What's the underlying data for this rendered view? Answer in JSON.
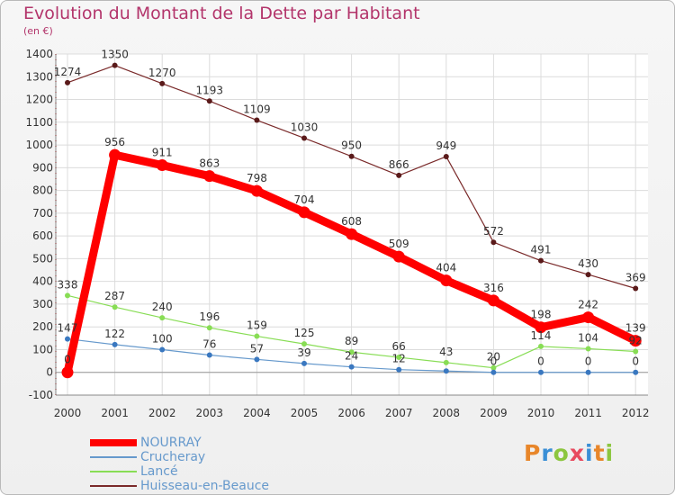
{
  "title": "Evolution du Montant de la Dette par Habitant",
  "subtitle": "(en €)",
  "logo": "Proxiti",
  "chart_data": {
    "type": "line",
    "categories": [
      "2000",
      "2001",
      "2002",
      "2003",
      "2004",
      "2005",
      "2006",
      "2007",
      "2008",
      "2009",
      "2010",
      "2011",
      "2012"
    ],
    "ylim": [
      -100,
      1400
    ],
    "yticks": [
      -100,
      0,
      100,
      200,
      300,
      400,
      500,
      600,
      700,
      800,
      900,
      1000,
      1100,
      1200,
      1300,
      1400
    ],
    "grid": true,
    "legend_position": "bottom-left",
    "series": [
      {
        "name": "NOURRAY",
        "color": "#ff0000",
        "values": [
          0,
          956,
          911,
          863,
          798,
          704,
          608,
          509,
          404,
          316,
          198,
          242,
          139
        ],
        "labels": [
          "0",
          "956",
          "911",
          "863",
          "798",
          "704",
          "608",
          "509",
          "404",
          "316",
          "198",
          "242",
          "139"
        ]
      },
      {
        "name": "Crucheray",
        "color": "#6699cc",
        "values": [
          147,
          122,
          100,
          76,
          57,
          39,
          24,
          12,
          6,
          0,
          0,
          0,
          0
        ],
        "labels": [
          "147",
          "122",
          "100",
          "76",
          "57",
          "39",
          "24",
          "12",
          "",
          "0",
          "0",
          "0",
          "0"
        ]
      },
      {
        "name": "Lancé",
        "color": "#88dd55",
        "values": [
          338,
          287,
          240,
          196,
          159,
          125,
          89,
          66,
          43,
          20,
          114,
          104,
          92
        ],
        "labels": [
          "338",
          "287",
          "240",
          "196",
          "159",
          "125",
          "89",
          "66",
          "43",
          "20",
          "114",
          "104",
          "92"
        ]
      },
      {
        "name": "Huisseau-en-Beauce",
        "color": "#7a2a2a",
        "values": [
          1274,
          1350,
          1270,
          1193,
          1109,
          1030,
          950,
          866,
          949,
          572,
          491,
          430,
          369
        ],
        "labels": [
          "1274",
          "1350",
          "1270",
          "1193",
          "1109",
          "1030",
          "950",
          "866",
          "949",
          "572",
          "491",
          "430",
          "369"
        ]
      }
    ]
  }
}
